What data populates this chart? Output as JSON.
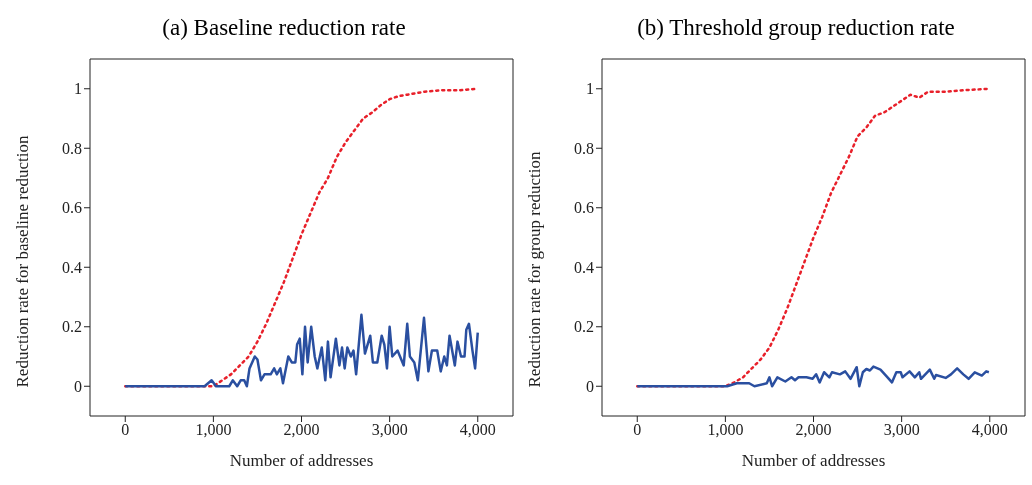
{
  "chart_data": [
    {
      "type": "line",
      "title": "(a) Baseline reduction rate",
      "xlabel": "Number of addresses",
      "ylabel": "Reduction rate for baseline reduction",
      "xlim": [
        -400,
        4400
      ],
      "xticks": [
        0,
        {
          "value": 1000,
          "label": "1,000"
        },
        {
          "value": 2000,
          "label": "2,000"
        },
        {
          "value": 3000,
          "label": "3,000"
        },
        {
          "value": 4000,
          "label": "4,000"
        }
      ],
      "ylim": [
        -0.1,
        1.1
      ],
      "yticks": [
        0,
        0.2,
        0.4,
        0.6,
        0.8,
        1
      ],
      "marker": "none",
      "series": [
        {
          "color": "#e8202a",
          "line_style": "dotted",
          "x": [
            0,
            100,
            200,
            300,
            400,
            500,
            600,
            700,
            800,
            900,
            1000,
            1100,
            1200,
            1300,
            1400,
            1500,
            1600,
            1700,
            1800,
            1900,
            2000,
            2100,
            2200,
            2300,
            2400,
            2500,
            2600,
            2700,
            2800,
            2900,
            3000,
            3100,
            3200,
            3400,
            3600,
            3800,
            4000
          ],
          "values": [
            0,
            0,
            0,
            0,
            0,
            0,
            0,
            0,
            0,
            0,
            0,
            0.02,
            0.04,
            0.07,
            0.1,
            0.15,
            0.21,
            0.28,
            0.35,
            0.43,
            0.51,
            0.58,
            0.65,
            0.7,
            0.77,
            0.82,
            0.86,
            0.9,
            0.92,
            0.945,
            0.965,
            0.975,
            0.98,
            0.99,
            0.995,
            0.995,
            1
          ]
        },
        {
          "color": "#2a4fa0",
          "line_style": "solid",
          "x": [
            0,
            500,
            900,
            980,
            1030,
            1180,
            1220,
            1270,
            1310,
            1350,
            1380,
            1410,
            1470,
            1500,
            1540,
            1580,
            1650,
            1690,
            1720,
            1760,
            1790,
            1850,
            1890,
            1930,
            1950,
            1980,
            2010,
            2040,
            2070,
            2110,
            2150,
            2180,
            2230,
            2270,
            2300,
            2330,
            2390,
            2430,
            2460,
            2490,
            2520,
            2560,
            2590,
            2620,
            2680,
            2720,
            2780,
            2810,
            2860,
            2910,
            2940,
            2970,
            3000,
            3030,
            3090,
            3160,
            3200,
            3230,
            3280,
            3320,
            3390,
            3440,
            3480,
            3540,
            3580,
            3620,
            3650,
            3680,
            3740,
            3770,
            3810,
            3850,
            3870,
            3900,
            3940,
            3970,
            4000
          ],
          "values": [
            0,
            0,
            0,
            0.02,
            0,
            0,
            0.02,
            0,
            0.02,
            0.02,
            0,
            0.06,
            0.1,
            0.09,
            0.02,
            0.04,
            0.04,
            0.06,
            0.04,
            0.06,
            0.01,
            0.1,
            0.08,
            0.08,
            0.14,
            0.16,
            0.04,
            0.2,
            0.08,
            0.2,
            0.1,
            0.06,
            0.13,
            0.02,
            0.15,
            0.03,
            0.16,
            0.07,
            0.13,
            0.06,
            0.13,
            0.1,
            0.12,
            0.04,
            0.24,
            0.11,
            0.17,
            0.08,
            0.08,
            0.17,
            0.14,
            0.06,
            0.2,
            0.1,
            0.12,
            0.07,
            0.21,
            0.1,
            0.08,
            0.02,
            0.23,
            0.05,
            0.12,
            0.12,
            0.05,
            0.1,
            0.07,
            0.17,
            0.07,
            0.15,
            0.1,
            0.1,
            0.19,
            0.21,
            0.12,
            0.06,
            0.18
          ]
        }
      ]
    },
    {
      "type": "line",
      "title": "(b) Threshold group reduction rate",
      "xlabel": "Number of addresses",
      "ylabel": "Reduction rate for group reduction",
      "xlim": [
        -400,
        4400
      ],
      "xticks": [
        0,
        {
          "value": 1000,
          "label": "1,000"
        },
        {
          "value": 2000,
          "label": "2,000"
        },
        {
          "value": 3000,
          "label": "3,000"
        },
        {
          "value": 4000,
          "label": "4,000"
        }
      ],
      "ylim": [
        -0.1,
        1.1
      ],
      "yticks": [
        0,
        0.2,
        0.4,
        0.6,
        0.8,
        1
      ],
      "marker": "none",
      "series": [
        {
          "color": "#e8202a",
          "line_style": "dotted",
          "x": [
            0,
            100,
            200,
            300,
            400,
            500,
            600,
            700,
            800,
            900,
            1000,
            1100,
            1200,
            1300,
            1400,
            1500,
            1600,
            1700,
            1800,
            1900,
            2000,
            2100,
            2200,
            2300,
            2400,
            2500,
            2600,
            2700,
            2800,
            2900,
            3000,
            3100,
            3200,
            3300,
            3500,
            3700,
            4000
          ],
          "values": [
            0,
            0,
            0,
            0,
            0,
            0,
            0,
            0,
            0,
            0,
            0,
            0.013,
            0.03,
            0.06,
            0.09,
            0.13,
            0.19,
            0.26,
            0.34,
            0.42,
            0.5,
            0.57,
            0.65,
            0.71,
            0.77,
            0.84,
            0.87,
            0.91,
            0.92,
            0.94,
            0.96,
            0.98,
            0.97,
            0.99,
            0.99,
            0.995,
            1
          ]
        },
        {
          "color": "#2a4fa0",
          "line_style": "solid",
          "x": [
            0,
            500,
            1020,
            1130,
            1270,
            1330,
            1470,
            1500,
            1530,
            1590,
            1680,
            1750,
            1790,
            1830,
            1920,
            1990,
            2030,
            2070,
            2120,
            2180,
            2210,
            2300,
            2360,
            2420,
            2490,
            2520,
            2560,
            2600,
            2640,
            2680,
            2760,
            2840,
            2890,
            2940,
            2990,
            3010,
            3090,
            3150,
            3200,
            3220,
            3320,
            3370,
            3390,
            3500,
            3560,
            3630,
            3700,
            3760,
            3830,
            3910,
            3960,
            3990
          ],
          "values": [
            0,
            0,
            0,
            0.01,
            0.01,
            0,
            0.01,
            0.03,
            0,
            0.03,
            0.016,
            0.03,
            0.02,
            0.03,
            0.03,
            0.025,
            0.04,
            0.013,
            0.047,
            0.03,
            0.047,
            0.04,
            0.05,
            0.025,
            0.064,
            0,
            0.047,
            0.058,
            0.053,
            0.066,
            0.056,
            0.03,
            0.013,
            0.047,
            0.047,
            0.03,
            0.05,
            0.03,
            0.047,
            0.025,
            0.056,
            0.025,
            0.038,
            0.028,
            0.04,
            0.06,
            0.04,
            0.025,
            0.047,
            0.036,
            0.05,
            0.047
          ]
        }
      ]
    }
  ]
}
